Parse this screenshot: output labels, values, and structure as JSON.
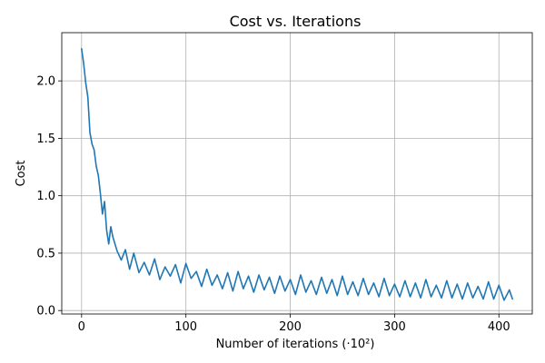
{
  "chart_data": {
    "type": "line",
    "title": "Cost vs. Iterations",
    "xlabel": "Number of iterations (·10²)",
    "ylabel": "Cost",
    "xlim": [
      -19,
      432
    ],
    "ylim": [
      -0.03,
      2.42
    ],
    "grid": true,
    "line_color": "#1f77b4",
    "xticks": [
      0,
      100,
      200,
      300,
      400
    ],
    "yticks": [
      0.0,
      0.5,
      1.0,
      1.5,
      2.0
    ],
    "xtick_labels": [
      "0",
      "100",
      "200",
      "300",
      "400"
    ],
    "ytick_labels": [
      "0.0",
      "0.5",
      "1.0",
      "1.5",
      "2.0"
    ],
    "series": [
      {
        "x": [
          0,
          2,
          4,
          6,
          8,
          10,
          12,
          14,
          16,
          18,
          20,
          22,
          24,
          26,
          28,
          30,
          34,
          38,
          42,
          46,
          50,
          55,
          60,
          65,
          70,
          75,
          80,
          85,
          90,
          95,
          100,
          105,
          110,
          115,
          120,
          125,
          130,
          135,
          140,
          145,
          150,
          155,
          160,
          165,
          170,
          175,
          180,
          185,
          190,
          195,
          200,
          205,
          210,
          215,
          220,
          225,
          230,
          235,
          240,
          245,
          250,
          255,
          260,
          265,
          270,
          275,
          280,
          285,
          290,
          295,
          300,
          305,
          310,
          315,
          320,
          325,
          330,
          335,
          340,
          345,
          350,
          355,
          360,
          365,
          370,
          375,
          380,
          385,
          390,
          395,
          400,
          405,
          410,
          413
        ],
        "y": [
          2.28,
          2.15,
          1.98,
          1.86,
          1.55,
          1.45,
          1.4,
          1.26,
          1.18,
          1.02,
          0.84,
          0.95,
          0.7,
          0.58,
          0.73,
          0.64,
          0.52,
          0.44,
          0.53,
          0.36,
          0.5,
          0.33,
          0.42,
          0.31,
          0.45,
          0.27,
          0.38,
          0.3,
          0.4,
          0.24,
          0.41,
          0.28,
          0.34,
          0.21,
          0.36,
          0.22,
          0.31,
          0.19,
          0.33,
          0.17,
          0.34,
          0.19,
          0.3,
          0.16,
          0.31,
          0.18,
          0.29,
          0.15,
          0.3,
          0.17,
          0.27,
          0.14,
          0.31,
          0.16,
          0.26,
          0.14,
          0.29,
          0.15,
          0.27,
          0.13,
          0.3,
          0.14,
          0.25,
          0.13,
          0.28,
          0.14,
          0.24,
          0.12,
          0.28,
          0.13,
          0.23,
          0.12,
          0.26,
          0.12,
          0.24,
          0.11,
          0.27,
          0.12,
          0.22,
          0.11,
          0.26,
          0.11,
          0.23,
          0.1,
          0.24,
          0.11,
          0.21,
          0.1,
          0.25,
          0.1,
          0.22,
          0.09,
          0.18,
          0.1
        ]
      }
    ]
  }
}
